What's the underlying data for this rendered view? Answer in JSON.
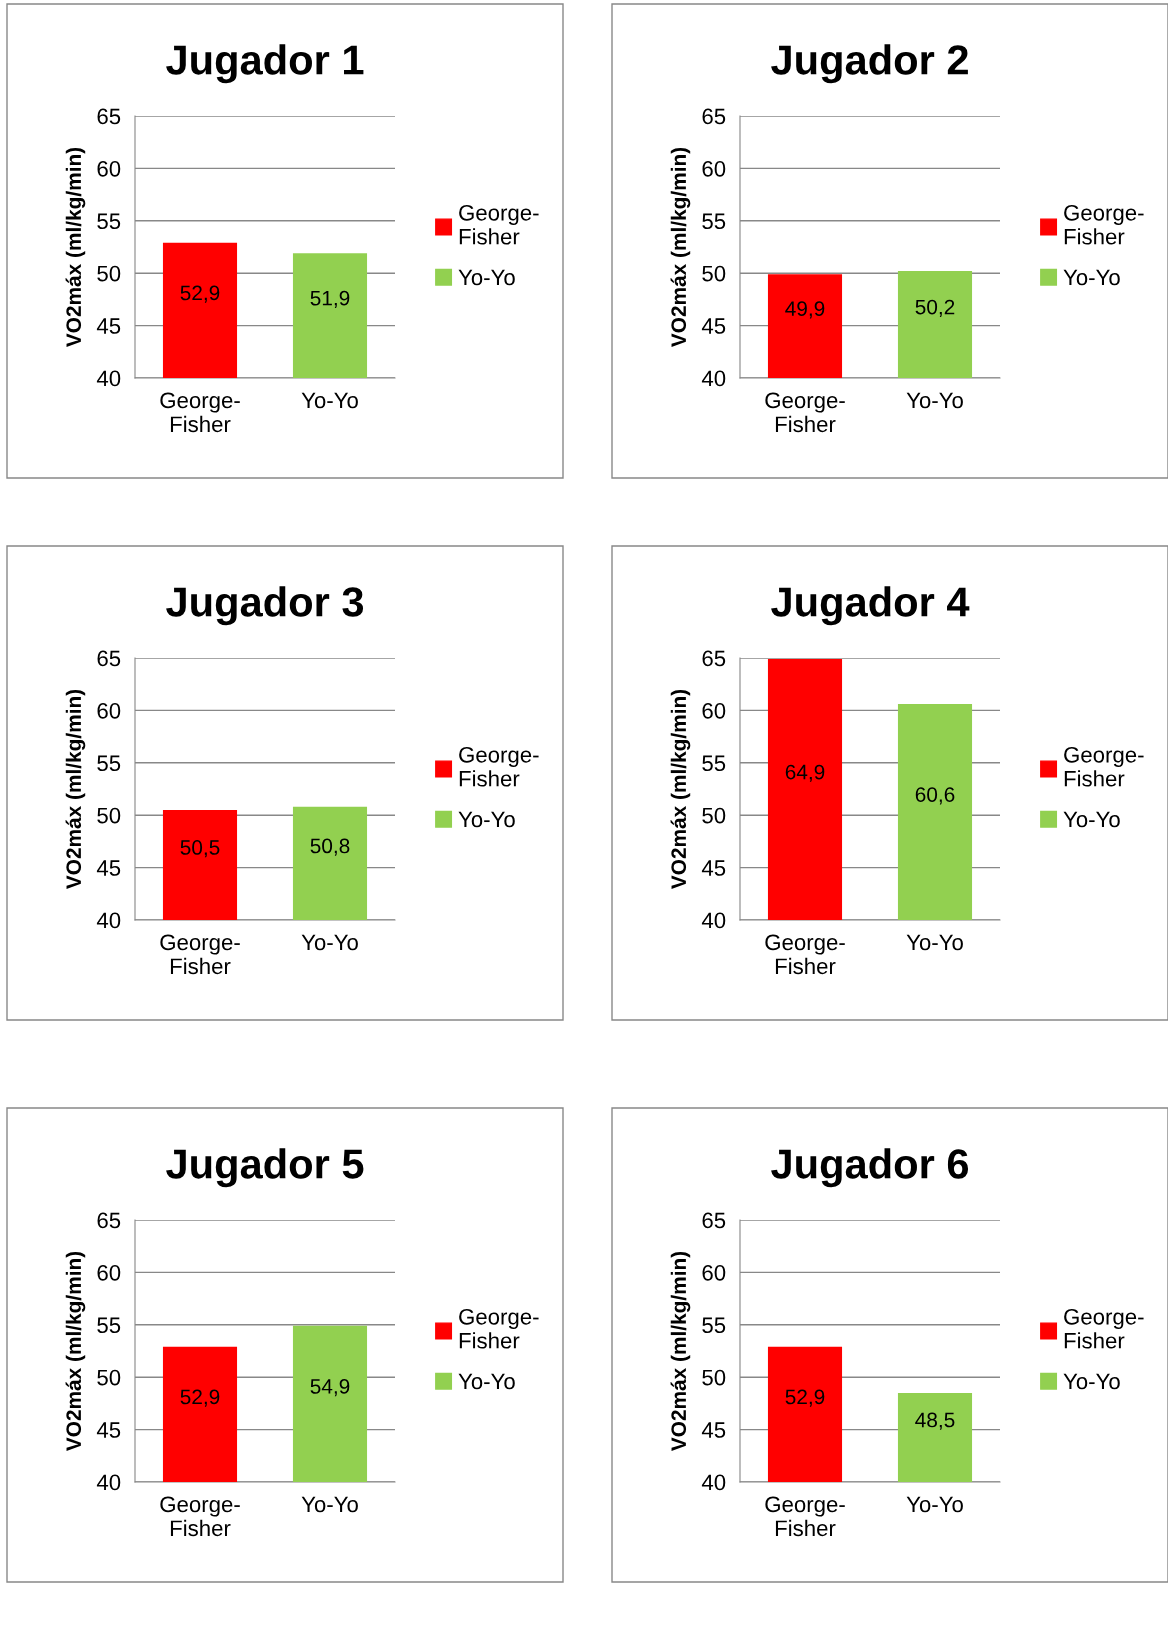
{
  "chart_data": [
    {
      "type": "bar",
      "title": "Jugador 1",
      "ylabel": "VO2máx (ml/kg/min)",
      "categories": [
        "George-Fisher",
        "Yo-Yo"
      ],
      "series": [
        {
          "name": "George-Fisher",
          "color": "#ff0000",
          "values": [
            52.9,
            null
          ],
          "value_labels": [
            "52,9",
            null
          ]
        },
        {
          "name": "Yo-Yo",
          "color": "#92d050",
          "values": [
            null,
            51.9
          ],
          "value_labels": [
            null,
            "51,9"
          ]
        }
      ],
      "ylim": [
        40,
        65
      ],
      "yticks": [
        40,
        45,
        50,
        55,
        60,
        65
      ],
      "grid": "y",
      "legend": "right"
    },
    {
      "type": "bar",
      "title": "Jugador 2",
      "ylabel": "VO2máx (ml/kg/min)",
      "categories": [
        "George-Fisher",
        "Yo-Yo"
      ],
      "series": [
        {
          "name": "George-Fisher",
          "color": "#ff0000",
          "values": [
            49.9,
            null
          ],
          "value_labels": [
            "49,9",
            null
          ]
        },
        {
          "name": "Yo-Yo",
          "color": "#92d050",
          "values": [
            null,
            50.2
          ],
          "value_labels": [
            null,
            "50,2"
          ]
        }
      ],
      "ylim": [
        40,
        65
      ],
      "yticks": [
        40,
        45,
        50,
        55,
        60,
        65
      ],
      "grid": "y",
      "legend": "right"
    },
    {
      "type": "bar",
      "title": "Jugador 3",
      "ylabel": "VO2máx (ml/kg/min)",
      "categories": [
        "George-Fisher",
        "Yo-Yo"
      ],
      "series": [
        {
          "name": "George-Fisher",
          "color": "#ff0000",
          "values": [
            50.5,
            null
          ],
          "value_labels": [
            "50,5",
            null
          ]
        },
        {
          "name": "Yo-Yo",
          "color": "#92d050",
          "values": [
            null,
            50.8
          ],
          "value_labels": [
            null,
            "50,8"
          ]
        }
      ],
      "ylim": [
        40,
        65
      ],
      "yticks": [
        40,
        45,
        50,
        55,
        60,
        65
      ],
      "grid": "y",
      "legend": "right"
    },
    {
      "type": "bar",
      "title": "Jugador 4",
      "ylabel": "VO2máx (ml/kg/min)",
      "categories": [
        "George-Fisher",
        "Yo-Yo"
      ],
      "series": [
        {
          "name": "George-Fisher",
          "color": "#ff0000",
          "values": [
            64.9,
            null
          ],
          "value_labels": [
            "64,9",
            null
          ]
        },
        {
          "name": "Yo-Yo",
          "color": "#92d050",
          "values": [
            null,
            60.6
          ],
          "value_labels": [
            null,
            "60,6"
          ]
        }
      ],
      "ylim": [
        40,
        65
      ],
      "yticks": [
        40,
        45,
        50,
        55,
        60,
        65
      ],
      "grid": "y",
      "legend": "right"
    },
    {
      "type": "bar",
      "title": "Jugador 5",
      "ylabel": "VO2máx (ml/kg/min)",
      "categories": [
        "George-Fisher",
        "Yo-Yo"
      ],
      "series": [
        {
          "name": "George-Fisher",
          "color": "#ff0000",
          "values": [
            52.9,
            null
          ],
          "value_labels": [
            "52,9",
            null
          ]
        },
        {
          "name": "Yo-Yo",
          "color": "#92d050",
          "values": [
            null,
            54.9
          ],
          "value_labels": [
            null,
            "54,9"
          ]
        }
      ],
      "ylim": [
        40,
        65
      ],
      "yticks": [
        40,
        45,
        50,
        55,
        60,
        65
      ],
      "grid": "y",
      "legend": "right"
    },
    {
      "type": "bar",
      "title": "Jugador 6",
      "ylabel": "VO2máx (ml/kg/min)",
      "categories": [
        "George-Fisher",
        "Yo-Yo"
      ],
      "series": [
        {
          "name": "George-Fisher",
          "color": "#ff0000",
          "values": [
            52.9,
            null
          ],
          "value_labels": [
            "52,9",
            null
          ]
        },
        {
          "name": "Yo-Yo",
          "color": "#92d050",
          "values": [
            null,
            48.5
          ],
          "value_labels": [
            null,
            "48,5"
          ]
        }
      ],
      "ylim": [
        40,
        65
      ],
      "yticks": [
        40,
        45,
        50,
        55,
        60,
        65
      ],
      "grid": "y",
      "legend": "right"
    }
  ]
}
